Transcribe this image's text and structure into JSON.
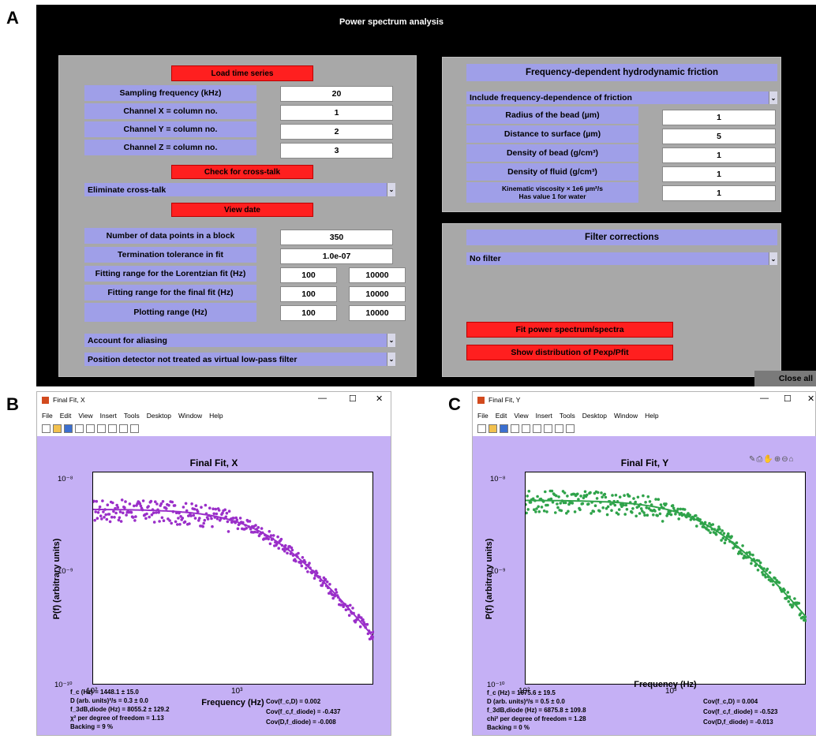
{
  "panel_labels": {
    "a": "A",
    "b": "B",
    "c": "C"
  },
  "main_window": {
    "title": "Power spectrum analysis",
    "load_button": "Load time series",
    "rows": [
      {
        "label": "Sampling frequency (kHz)",
        "value": "20"
      },
      {
        "label": "Channel X  =  column no.",
        "value": "1"
      },
      {
        "label": "Channel Y  =  column no.",
        "value": "2"
      },
      {
        "label": "Channel Z  =  column no.",
        "value": "3"
      }
    ],
    "crosstalk_button": "Check for cross-talk",
    "crosstalk_dropdown": "Eliminate cross-talk",
    "view_button": "View date",
    "block_label": "Number of data points in a block",
    "block_value": "350",
    "tolerance_label": "Termination tolerance in fit",
    "tolerance_value": "1.0e-07",
    "ranges": [
      {
        "label": "Fitting range for the Lorentzian fit (Hz)",
        "min": "100",
        "max": "10000"
      },
      {
        "label": "Fitting range for the final fit (Hz)",
        "min": "100",
        "max": "10000"
      },
      {
        "label": "Plotting range (Hz)",
        "min": "100",
        "max": "10000"
      }
    ],
    "aliasing_dropdown": "Account for aliasing",
    "detector_dropdown": "Position detector not treated as virtual low-pass filter",
    "friction_header": "Frequency-dependent hydrodynamic friction",
    "friction_dropdown": "Include frequency-dependence of friction",
    "friction_rows": [
      {
        "label": "Radius of the bead (µm)",
        "value": "1"
      },
      {
        "label": "Distance to surface (µm)",
        "value": "5"
      },
      {
        "label": "Density of bead (g/cm³)",
        "value": "1"
      },
      {
        "label": "Density of fluid (g/cm³)",
        "value": "1"
      }
    ],
    "viscosity_label_1": "Kinematic viscosity  × 1e6 µm²/s",
    "viscosity_label_2": "Has value 1 for water",
    "viscosity_value": "1",
    "filter_header": "Filter corrections",
    "filter_dropdown": "No filter",
    "fit_button": "Fit power spectrum/spectra",
    "dist_button": "Show distribution of Pexp/Pfit",
    "close_button": "Close all"
  },
  "menu": [
    "File",
    "Edit",
    "View",
    "Insert",
    "Tools",
    "Desktop",
    "Window",
    "Help"
  ],
  "window_controls": {
    "minimize": "—",
    "maximize": "☐",
    "close": "✕"
  },
  "fig_x": {
    "window_title": "Final Fit, X",
    "plot_title": "Final Fit, X",
    "ylabel": "P(f) (arbitrary units)",
    "xlabel": "Frequency (Hz)",
    "yticks": [
      "10⁻⁸",
      "10⁻⁹",
      "10⁻¹⁰"
    ],
    "xticks": [
      "10²",
      "10³"
    ],
    "stats_left": [
      "f_c (Hz) = 1448.1 ± 15.0",
      "D (arb. units)²/s = 0.3 ± 0.0",
      "f_3dB,diode (Hz) = 8055.2 ± 129.2",
      "χ² per degree of freedom = 1.13",
      "Backing  = 9 %"
    ],
    "stats_right": [
      "Cov(f_c,D)        = 0.002",
      "Cov(f_c,f_diode) = -0.437",
      "Cov(D,f_diode)   = -0.008"
    ],
    "color": "#9a2fc9"
  },
  "fig_y": {
    "window_title": "Final Fit, Y",
    "plot_title": "Final Fit, Y",
    "ylabel": "P(f) (arbitrary units)",
    "xlabel": "Frequency (Hz)",
    "yticks": [
      "10⁻⁸",
      "10⁻⁹",
      "10⁻¹⁰"
    ],
    "xticks": [
      "10²",
      "10³"
    ],
    "stats_left": [
      "f_c (Hz) = 1675.6 ± 19.5",
      "D (arb. units)²/s = 0.5 ± 0.0",
      "f_3dB,diode (Hz) = 6875.8 ± 109.8",
      "chi² per degree of freedom = 1.28",
      "Backing  = 0 %"
    ],
    "stats_right": [
      "Cov(f_c,D)        = 0.004",
      "Cov(f_c,f_diode)  = -0.523",
      "Cov(D,f_diode)    = -0.013"
    ],
    "color": "#2fa34a"
  },
  "chart_data": [
    {
      "type": "scatter",
      "title": "Final Fit, X",
      "xlabel": "Frequency (Hz)",
      "ylabel": "P(f) (arbitrary units)",
      "xscale": "log",
      "yscale": "log",
      "xlim": [
        100,
        7000
      ],
      "ylim": [
        1e-10,
        2e-08
      ],
      "fc": 1448.1,
      "plateau": 8e-09
    },
    {
      "type": "scatter",
      "title": "Final Fit, Y",
      "xlabel": "Frequency (Hz)",
      "ylabel": "P(f) (arbitrary units)",
      "xscale": "log",
      "yscale": "log",
      "xlim": [
        100,
        7000
      ],
      "ylim": [
        1e-10,
        2e-08
      ],
      "fc": 1675.6,
      "plateau": 1e-08
    }
  ]
}
